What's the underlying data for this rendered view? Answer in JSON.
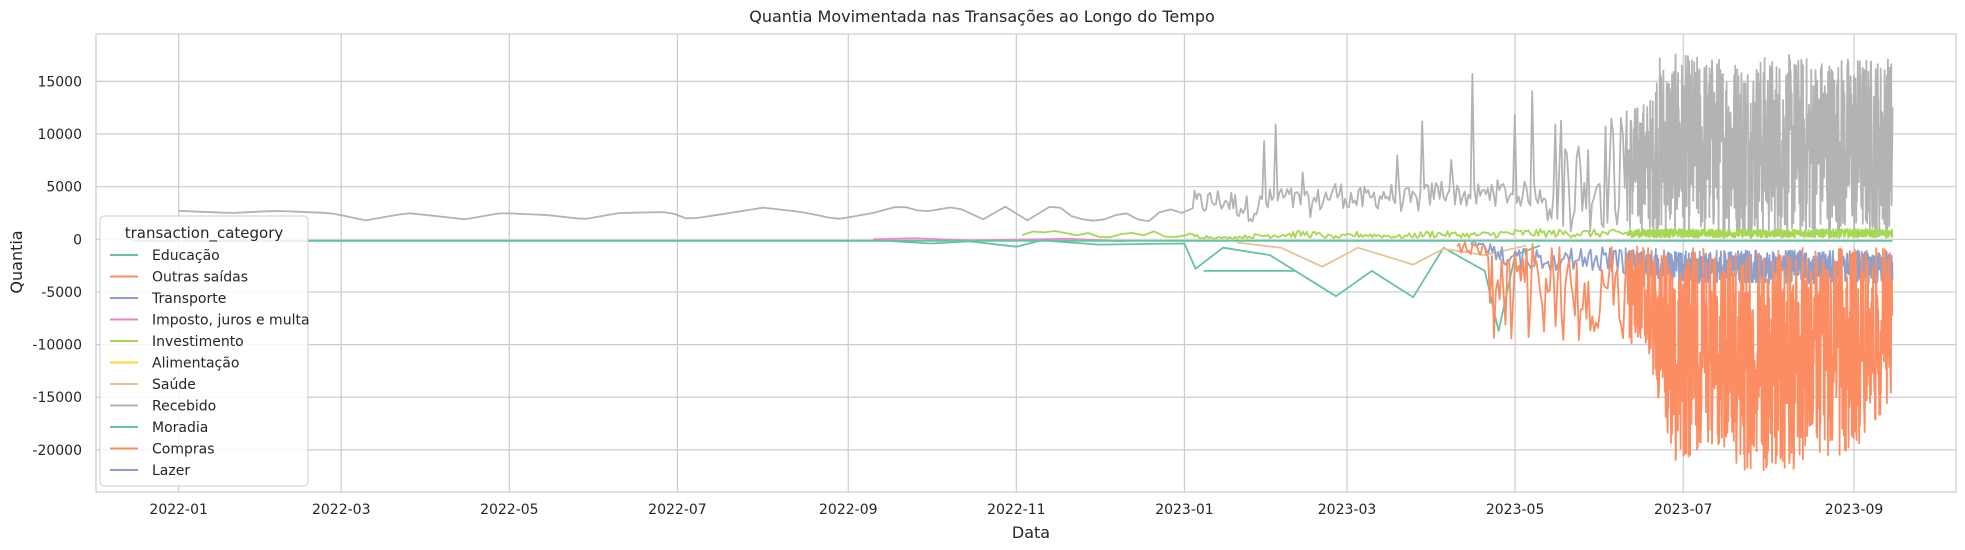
{
  "chart_data": {
    "type": "line",
    "title": "Quantia Movimentada nas Transações ao Longo do Tempo",
    "xlabel": "Data",
    "ylabel": "Quantia",
    "x_ticks": [
      "2022-01",
      "2022-03",
      "2022-05",
      "2022-07",
      "2022-09",
      "2022-11",
      "2023-01",
      "2023-03",
      "2023-05",
      "2023-07",
      "2023-09"
    ],
    "y_ticks": [
      15000,
      10000,
      5000,
      0,
      -5000,
      -10000,
      -15000,
      -20000
    ],
    "xlim": [
      "2021-12-02",
      "2023-10-08"
    ],
    "ylim": [
      -24000,
      19500
    ],
    "grid": true,
    "legend": {
      "title": "transaction_category",
      "position": "lower-left",
      "entries": [
        {
          "name": "Educação",
          "color": "#66c2a5"
        },
        {
          "name": "Outras saídas",
          "color": "#fc8d62"
        },
        {
          "name": "Transporte",
          "color": "#8da0cb"
        },
        {
          "name": "Imposto, juros e multa",
          "color": "#e78ac3"
        },
        {
          "name": "Investimento",
          "color": "#a6d854"
        },
        {
          "name": "Alimentação",
          "color": "#ffd92f"
        },
        {
          "name": "Saúde",
          "color": "#e5c494"
        },
        {
          "name": "Recebido",
          "color": "#b3b3b3"
        },
        {
          "name": "Moradia",
          "color": "#66c2a5"
        },
        {
          "name": "Compras",
          "color": "#fc8d62"
        },
        {
          "name": "Lazer",
          "color": "#8da0cb"
        }
      ]
    },
    "series": [
      {
        "name": "Recebido",
        "color": "#b3b3b3",
        "points": [
          [
            "2022-01-01",
            2700
          ],
          [
            "2022-01-20",
            2500
          ],
          [
            "2022-02-05",
            2700
          ],
          [
            "2022-02-25",
            2500
          ],
          [
            "2022-03-10",
            1800
          ],
          [
            "2022-03-25",
            2500
          ],
          [
            "2022-04-15",
            1900
          ],
          [
            "2022-04-28",
            2500
          ],
          [
            "2022-05-15",
            2300
          ],
          [
            "2022-05-28",
            1900
          ],
          [
            "2022-06-10",
            2500
          ],
          [
            "2022-06-28",
            2600
          ],
          [
            "2022-07-05",
            1900
          ],
          [
            "2022-07-20",
            2500
          ],
          [
            "2022-08-01",
            3000
          ],
          [
            "2022-08-15",
            2600
          ],
          [
            "2022-08-28",
            1900
          ],
          [
            "2022-09-10",
            2500
          ],
          [
            "2022-09-20",
            3200
          ],
          [
            "2022-09-28",
            2600
          ],
          [
            "2022-10-10",
            3100
          ],
          [
            "2022-10-20",
            1900
          ],
          [
            "2022-10-28",
            3100
          ],
          [
            "2022-11-05",
            1800
          ],
          [
            "2022-11-15",
            3400
          ],
          [
            "2022-11-22",
            2000
          ],
          [
            "2022-12-01",
            1700
          ],
          [
            "2022-12-10",
            2600
          ],
          [
            "2022-12-18",
            1500
          ],
          [
            "2022-12-25",
            3000
          ],
          [
            "2023-01-05",
            2100
          ],
          [
            "2023-01-15",
            2500
          ],
          [
            "2023-01-25",
            1600
          ],
          [
            "2023-02-05",
            2800
          ],
          [
            "2023-02-15",
            2000
          ],
          [
            "2023-02-25",
            3200
          ],
          [
            "2023-03-05",
            2400
          ],
          [
            "2023-03-15",
            3000
          ],
          [
            "2023-03-25",
            2300
          ],
          [
            "2023-04-05",
            3500
          ],
          [
            "2023-04-15",
            2800
          ],
          [
            "2023-04-25",
            3200
          ],
          [
            "2023-05-05",
            3000
          ],
          [
            "2023-05-15",
            3500
          ],
          [
            "2023-05-25",
            2800
          ],
          [
            "2023-06-05",
            3300
          ],
          [
            "2023-06-15",
            3500
          ],
          [
            "2023-06-25",
            4000
          ],
          [
            "2023-07-05",
            3500
          ],
          [
            "2023-07-15",
            4000
          ],
          [
            "2023-07-25",
            3300
          ],
          [
            "2023-08-05",
            3800
          ],
          [
            "2023-08-15",
            4100
          ],
          [
            "2023-08-25",
            3600
          ],
          [
            "2023-09-05",
            4000
          ],
          [
            "2023-09-15",
            3800
          ]
        ]
      },
      {
        "name": "Investimento",
        "color": "#a6d854",
        "points": [
          [
            "2022-11-03",
            800
          ],
          [
            "2022-11-15",
            900
          ],
          [
            "2022-12-01",
            1000
          ],
          [
            "2022-12-05",
            200
          ],
          [
            "2022-12-15",
            900
          ],
          [
            "2023-01-01",
            600
          ],
          [
            "2023-01-15",
            200
          ],
          [
            "2023-02-01",
            600
          ],
          [
            "2023-02-15",
            800
          ],
          [
            "2023-02-25",
            300
          ],
          [
            "2023-03-05",
            700
          ],
          [
            "2023-03-20",
            400
          ],
          [
            "2023-04-01",
            800
          ],
          [
            "2023-04-15",
            600
          ],
          [
            "2023-05-01",
            900
          ],
          [
            "2023-06-01",
            850
          ],
          [
            "2023-07-01",
            900
          ],
          [
            "2023-08-01",
            850
          ],
          [
            "2023-09-01",
            900
          ],
          [
            "2023-09-15",
            850
          ]
        ]
      },
      {
        "name": "Imposto, juros e multa",
        "color": "#e78ac3",
        "points": [
          [
            "2022-09-10",
            0
          ],
          [
            "2022-09-25",
            100
          ],
          [
            "2022-10-15",
            -100
          ],
          [
            "2022-11-20",
            50
          ],
          [
            "2022-12-10",
            -200
          ]
        ]
      },
      {
        "name": "Educação",
        "color": "#66c2a5",
        "points": [
          [
            "2021-12-15",
            -150
          ],
          [
            "2022-09-15",
            -150
          ],
          [
            "2022-10-01",
            -400
          ],
          [
            "2022-10-15",
            -200
          ],
          [
            "2022-11-01",
            -700
          ],
          [
            "2022-11-10",
            -100
          ],
          [
            "2022-12-01",
            -500
          ],
          [
            "2023-01-01",
            -400
          ],
          [
            "2023-01-05",
            -2800
          ],
          [
            "2023-01-15",
            -800
          ],
          [
            "2023-02-01",
            -1500
          ],
          [
            "2023-02-25",
            -5400
          ],
          [
            "2023-03-10",
            -3000
          ],
          [
            "2023-03-25",
            -5500
          ],
          [
            "2023-04-05",
            -800
          ],
          [
            "2023-04-20",
            -3000
          ],
          [
            "2023-04-25",
            -8700
          ],
          [
            "2023-05-01",
            -1500
          ],
          [
            "2023-05-10",
            -600
          ]
        ]
      },
      {
        "name": "Moradia",
        "color": "#66c2a5",
        "points": [
          [
            "2023-01-08",
            -3000
          ],
          [
            "2023-02-10",
            -3000
          ]
        ]
      },
      {
        "name": "Saúde",
        "color": "#e5c494",
        "points": [
          [
            "2023-01-20",
            -300
          ],
          [
            "2023-02-05",
            -800
          ],
          [
            "2023-02-20",
            -2600
          ],
          [
            "2023-03-05",
            -800
          ],
          [
            "2023-03-25",
            -2400
          ],
          [
            "2023-04-05",
            -900
          ],
          [
            "2023-04-20",
            -1500
          ],
          [
            "2023-05-05",
            -600
          ]
        ]
      },
      {
        "name": "Transporte",
        "color": "#8da0cb",
        "points": [
          [
            "2023-04-15",
            -500
          ],
          [
            "2023-05-01",
            -2500
          ],
          [
            "2023-06-01",
            -2500
          ],
          [
            "2023-06-20",
            -3000
          ],
          [
            "2023-07-01",
            -3500
          ],
          [
            "2023-08-01",
            -3500
          ],
          [
            "2023-09-01",
            -3500
          ],
          [
            "2023-09-15",
            -3500
          ]
        ]
      },
      {
        "name": "Outras saídas",
        "color": "#fc8d62",
        "points": [
          [
            "2023-04-10",
            -2000
          ],
          [
            "2023-04-20",
            -5000
          ],
          [
            "2023-05-01",
            -8000
          ],
          [
            "2023-05-15",
            -9000
          ],
          [
            "2023-06-01",
            -10500
          ],
          [
            "2023-06-18",
            -11000
          ],
          [
            "2023-06-28",
            -20800
          ],
          [
            "2023-07-10",
            -18500
          ],
          [
            "2023-07-25",
            -21500
          ],
          [
            "2023-08-10",
            -21500
          ],
          [
            "2023-08-25",
            -20000
          ],
          [
            "2023-09-08",
            -18000
          ],
          [
            "2023-09-15",
            -14000
          ]
        ]
      }
    ]
  }
}
